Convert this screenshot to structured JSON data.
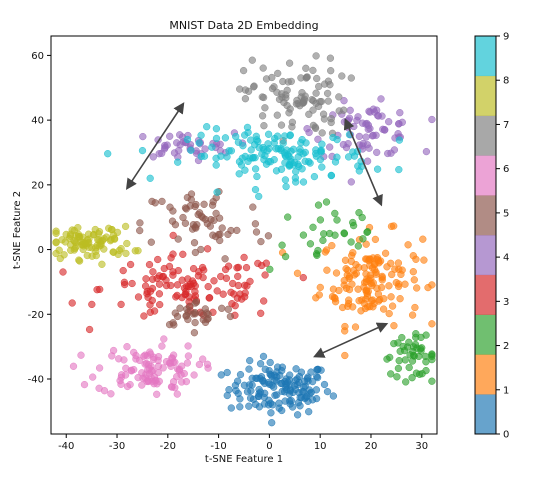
{
  "chart_data": {
    "type": "scatter",
    "title": "MNIST Data 2D Embedding",
    "xlabel": "t-SNE Feature 1",
    "ylabel": "t-SNE Feature 2",
    "xlim": [
      -43,
      33
    ],
    "ylim": [
      -57,
      66
    ],
    "xticks": [
      -40,
      -30,
      -20,
      -10,
      0,
      10,
      20,
      30
    ],
    "yticks": [
      -40,
      -20,
      0,
      20,
      40,
      60
    ],
    "grid": false,
    "colorbar": {
      "ticks": [
        0,
        1,
        2,
        3,
        4,
        5,
        6,
        7,
        8,
        9
      ],
      "colors": [
        "#1f77b4",
        "#ff7f0e",
        "#2ca02c",
        "#d62728",
        "#9467bd",
        "#8c564b",
        "#e377c2",
        "#7f7f7f",
        "#bcbd22",
        "#17becf"
      ]
    },
    "clusters": [
      {
        "digit": 0,
        "cx": 2,
        "cy": -43,
        "sx": 5,
        "sy": 4,
        "n": 140
      },
      {
        "digit": 1,
        "cx": 20,
        "cy": -9,
        "sx": 5,
        "sy": 7,
        "n": 140
      },
      {
        "digit": 2,
        "cx": 28,
        "cy": -33,
        "sx": 3,
        "sy": 3,
        "n": 45
      },
      {
        "digit": 2,
        "cx": 12,
        "cy": 5,
        "sx": 6,
        "sy": 6,
        "n": 30
      },
      {
        "digit": 3,
        "cx": -15,
        "cy": -12,
        "sx": 9,
        "sy": 5,
        "n": 120
      },
      {
        "digit": 4,
        "cx": 19,
        "cy": 37,
        "sx": 5,
        "sy": 4,
        "n": 70
      },
      {
        "digit": 4,
        "cx": -17,
        "cy": 32,
        "sx": 5,
        "sy": 2,
        "n": 40
      },
      {
        "digit": 5,
        "cx": -13,
        "cy": 8,
        "sx": 6,
        "sy": 6,
        "n": 60
      },
      {
        "digit": 5,
        "cx": -14,
        "cy": -20,
        "sx": 4,
        "sy": 2,
        "n": 30
      },
      {
        "digit": 6,
        "cx": -24,
        "cy": -37,
        "sx": 5,
        "sy": 4,
        "n": 100
      },
      {
        "digit": 7,
        "cx": 5,
        "cy": 47,
        "sx": 5,
        "sy": 6,
        "n": 90
      },
      {
        "digit": 8,
        "cx": -35,
        "cy": 2,
        "sx": 4,
        "sy": 2.5,
        "n": 90
      },
      {
        "digit": 9,
        "cx": 2,
        "cy": 29,
        "sx": 9,
        "sy": 4,
        "n": 140
      }
    ],
    "arrows": [
      {
        "from": [
          -28,
          19
        ],
        "to": [
          -17,
          45
        ]
      },
      {
        "from": [
          15,
          40
        ],
        "to": [
          22,
          14
        ]
      },
      {
        "from": [
          9,
          -33
        ],
        "to": [
          23,
          -23
        ]
      }
    ]
  }
}
